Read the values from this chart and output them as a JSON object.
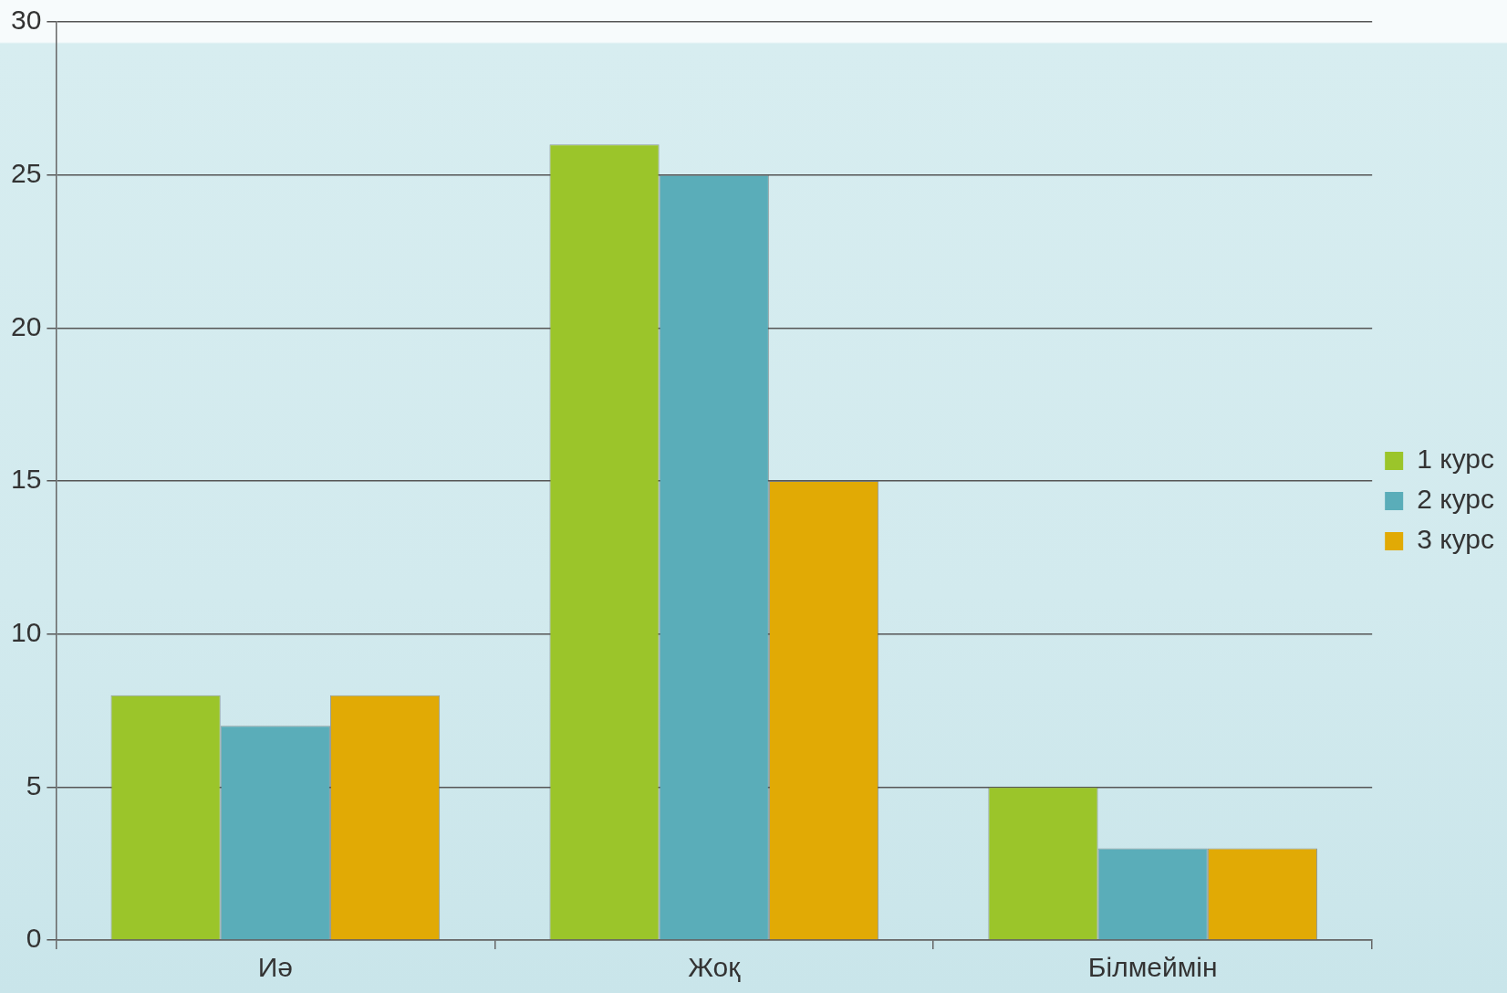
{
  "chart_data": {
    "type": "bar",
    "categories": [
      "Иә",
      "Жоқ",
      "Білмеймін"
    ],
    "series": [
      {
        "name": "1 курс",
        "color": "#9bc52a",
        "values": [
          8,
          26,
          5
        ]
      },
      {
        "name": "2 курс",
        "color": "#5aadb9",
        "values": [
          7,
          25,
          3
        ]
      },
      {
        "name": "3 курс",
        "color": "#e1aa05",
        "values": [
          8,
          15,
          3
        ]
      }
    ],
    "ylim": [
      0,
      30
    ],
    "yticks": [
      0,
      5,
      10,
      15,
      20,
      25,
      30
    ],
    "grid": "y",
    "legend": "right"
  }
}
